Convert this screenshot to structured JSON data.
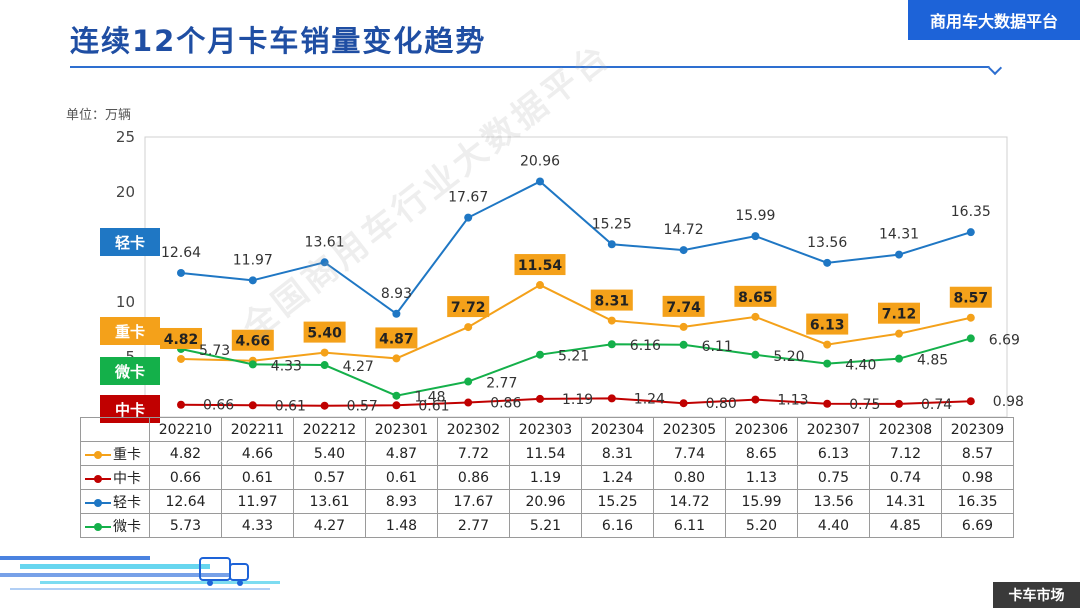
{
  "header": {
    "title": "连续12个月卡车销量变化趋势",
    "brand": "商用车大数据平台",
    "unit": "单位：万辆",
    "watermark": "全国商用车行业大数据平台",
    "footer": "卡车市场"
  },
  "colors": {
    "heavy": "#f4a11a",
    "medium": "#c00000",
    "light": "#1f77c4",
    "micro": "#14b04a"
  },
  "legend_boxes": [
    {
      "label": "轻卡",
      "color": "#1f77c4"
    },
    {
      "label": "重卡",
      "color": "#f4a11a"
    },
    {
      "label": "微卡",
      "color": "#14b04a"
    },
    {
      "label": "中卡",
      "color": "#c00000"
    }
  ],
  "chart_data": {
    "type": "line",
    "categories": [
      "202210",
      "202211",
      "202212",
      "202301",
      "202302",
      "202303",
      "202304",
      "202305",
      "202306",
      "202307",
      "202308",
      "202309"
    ],
    "ylim": [
      0,
      25
    ],
    "yticks": [
      "25",
      "20",
      "10",
      "5"
    ],
    "series": [
      {
        "key": "heavy",
        "name": "重卡",
        "values": [
          4.82,
          4.66,
          5.4,
          4.87,
          7.72,
          11.54,
          8.31,
          7.74,
          8.65,
          6.13,
          7.12,
          8.57
        ]
      },
      {
        "key": "medium",
        "name": "中卡",
        "values": [
          0.66,
          0.61,
          0.57,
          0.61,
          0.86,
          1.19,
          1.24,
          0.8,
          1.13,
          0.75,
          0.74,
          0.98
        ]
      },
      {
        "key": "light",
        "name": "轻卡",
        "values": [
          12.64,
          11.97,
          13.61,
          8.93,
          17.67,
          20.96,
          15.25,
          14.72,
          15.99,
          13.56,
          14.31,
          16.35
        ]
      },
      {
        "key": "micro",
        "name": "微卡",
        "values": [
          5.73,
          4.33,
          4.27,
          1.48,
          2.77,
          5.21,
          6.16,
          6.11,
          5.2,
          4.4,
          4.85,
          6.69
        ]
      }
    ]
  },
  "table": {
    "rows": [
      {
        "label": "重卡",
        "key": "heavy",
        "cells": [
          "4.82",
          "4.66",
          "5.40",
          "4.87",
          "7.72",
          "11.54",
          "8.31",
          "7.74",
          "8.65",
          "6.13",
          "7.12",
          "8.57"
        ]
      },
      {
        "label": "中卡",
        "key": "medium",
        "cells": [
          "0.66",
          "0.61",
          "0.57",
          "0.61",
          "0.86",
          "1.19",
          "1.24",
          "0.80",
          "1.13",
          "0.75",
          "0.74",
          "0.98"
        ]
      },
      {
        "label": "轻卡",
        "key": "light",
        "cells": [
          "12.64",
          "11.97",
          "13.61",
          "8.93",
          "17.67",
          "20.96",
          "15.25",
          "14.72",
          "15.99",
          "13.56",
          "14.31",
          "16.35"
        ]
      },
      {
        "label": "微卡",
        "key": "micro",
        "cells": [
          "5.73",
          "4.33",
          "4.27",
          "1.48",
          "2.77",
          "5.21",
          "6.16",
          "6.11",
          "5.20",
          "4.40",
          "4.85",
          "6.69"
        ]
      }
    ]
  }
}
